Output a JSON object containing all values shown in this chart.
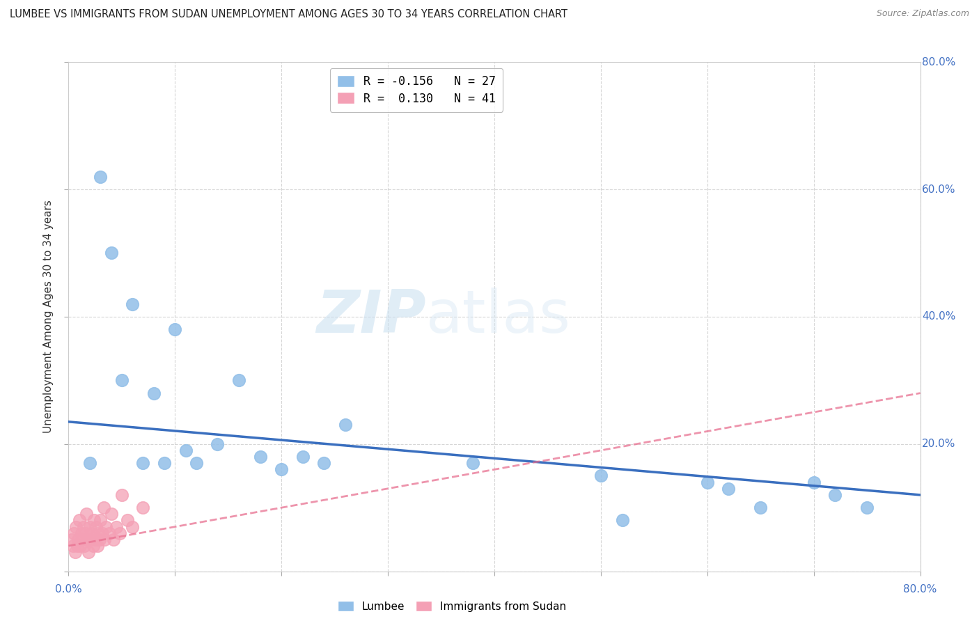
{
  "title": "LUMBEE VS IMMIGRANTS FROM SUDAN UNEMPLOYMENT AMONG AGES 30 TO 34 YEARS CORRELATION CHART",
  "source": "Source: ZipAtlas.com",
  "ylabel": "Unemployment Among Ages 30 to 34 years",
  "right_yticks": [
    "80.0%",
    "60.0%",
    "40.0%",
    "20.0%"
  ],
  "right_ytick_vals": [
    0.8,
    0.6,
    0.4,
    0.2
  ],
  "xlim": [
    0.0,
    0.8
  ],
  "ylim": [
    0.0,
    0.8
  ],
  "lumbee_R": -0.156,
  "lumbee_N": 27,
  "sudan_R": 0.13,
  "sudan_N": 41,
  "lumbee_color": "#92bfe8",
  "sudan_color": "#f4a0b5",
  "lumbee_line_color": "#3a6fbf",
  "sudan_line_color": "#e87090",
  "watermark_zip": "ZIP",
  "watermark_atlas": "atlas",
  "lumbee_x": [
    0.02,
    0.03,
    0.04,
    0.05,
    0.06,
    0.07,
    0.08,
    0.09,
    0.1,
    0.11,
    0.12,
    0.14,
    0.16,
    0.18,
    0.2,
    0.22,
    0.24,
    0.26,
    0.38,
    0.5,
    0.52,
    0.6,
    0.62,
    0.65,
    0.7,
    0.72,
    0.75
  ],
  "lumbee_y": [
    0.17,
    0.62,
    0.5,
    0.3,
    0.42,
    0.17,
    0.28,
    0.17,
    0.38,
    0.19,
    0.17,
    0.2,
    0.3,
    0.18,
    0.16,
    0.18,
    0.17,
    0.23,
    0.17,
    0.15,
    0.08,
    0.14,
    0.13,
    0.1,
    0.14,
    0.12,
    0.1
  ],
  "sudan_x": [
    0.003,
    0.004,
    0.005,
    0.006,
    0.007,
    0.008,
    0.009,
    0.01,
    0.011,
    0.012,
    0.013,
    0.014,
    0.015,
    0.016,
    0.017,
    0.018,
    0.019,
    0.02,
    0.021,
    0.022,
    0.023,
    0.024,
    0.025,
    0.026,
    0.027,
    0.028,
    0.029,
    0.03,
    0.032,
    0.033,
    0.034,
    0.035,
    0.038,
    0.04,
    0.042,
    0.045,
    0.048,
    0.05,
    0.055,
    0.06,
    0.07
  ],
  "sudan_y": [
    0.05,
    0.04,
    0.06,
    0.03,
    0.07,
    0.04,
    0.05,
    0.08,
    0.04,
    0.06,
    0.05,
    0.07,
    0.04,
    0.06,
    0.09,
    0.05,
    0.03,
    0.07,
    0.05,
    0.06,
    0.04,
    0.08,
    0.05,
    0.07,
    0.04,
    0.06,
    0.05,
    0.08,
    0.06,
    0.1,
    0.05,
    0.07,
    0.06,
    0.09,
    0.05,
    0.07,
    0.06,
    0.12,
    0.08,
    0.07,
    0.1
  ],
  "lumbee_line_x": [
    0.0,
    0.8
  ],
  "lumbee_line_y": [
    0.235,
    0.12
  ],
  "sudan_line_x": [
    0.0,
    0.8
  ],
  "sudan_line_y": [
    0.04,
    0.28
  ]
}
